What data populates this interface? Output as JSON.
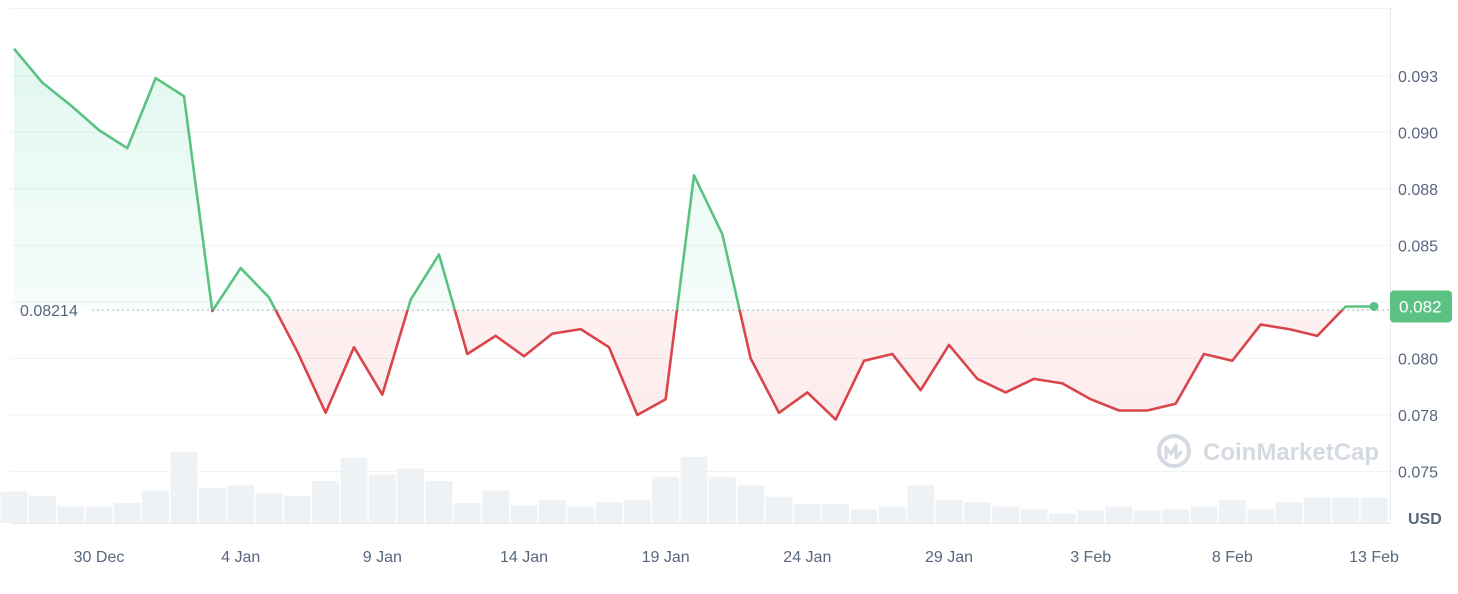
{
  "chart_data": {
    "type": "line",
    "y_unit": "USD",
    "reference_value": "0.08214",
    "current_value": "0.082",
    "ylim": [
      0.0733,
      0.0955
    ],
    "y_ticks": [
      {
        "value": 0.075,
        "label": "0.075"
      },
      {
        "value": 0.0775,
        "label": "0.078"
      },
      {
        "value": 0.08,
        "label": "0.080"
      },
      {
        "value": 0.0825,
        "label": "0.082"
      },
      {
        "value": 0.085,
        "label": "0.085"
      },
      {
        "value": 0.0875,
        "label": "0.088"
      },
      {
        "value": 0.09,
        "label": "0.090"
      },
      {
        "value": 0.0925,
        "label": "0.093"
      }
    ],
    "x_ticks": [
      {
        "index": 3,
        "label": "30 Dec"
      },
      {
        "index": 8,
        "label": "4 Jan"
      },
      {
        "index": 13,
        "label": "9 Jan"
      },
      {
        "index": 18,
        "label": "14 Jan"
      },
      {
        "index": 23,
        "label": "19 Jan"
      },
      {
        "index": 28,
        "label": "24 Jan"
      },
      {
        "index": 33,
        "label": "29 Jan"
      },
      {
        "index": 38,
        "label": "3 Feb"
      },
      {
        "index": 43,
        "label": "8 Feb"
      },
      {
        "index": 48,
        "label": "13 Feb"
      }
    ],
    "values": [
      0.0937,
      0.0922,
      0.0912,
      0.0901,
      0.0893,
      0.0924,
      0.0916,
      0.0821,
      0.084,
      0.0827,
      0.0803,
      0.0776,
      0.0805,
      0.0784,
      0.0826,
      0.0846,
      0.0802,
      0.081,
      0.0801,
      0.0811,
      0.0813,
      0.0805,
      0.0775,
      0.0782,
      0.0881,
      0.0855,
      0.08,
      0.0776,
      0.0785,
      0.0773,
      0.0799,
      0.0802,
      0.0786,
      0.0806,
      0.0791,
      0.0785,
      0.0791,
      0.0789,
      0.0782,
      0.0777,
      0.0777,
      0.078,
      0.0802,
      0.0799,
      0.0815,
      0.0813,
      0.081,
      0.0823,
      0.0823
    ],
    "volume": [
      0.3,
      0.26,
      0.16,
      0.16,
      0.19,
      0.31,
      0.68,
      0.33,
      0.36,
      0.28,
      0.26,
      0.4,
      0.62,
      0.46,
      0.52,
      0.4,
      0.19,
      0.31,
      0.17,
      0.22,
      0.16,
      0.2,
      0.22,
      0.44,
      0.63,
      0.44,
      0.36,
      0.25,
      0.18,
      0.18,
      0.13,
      0.16,
      0.36,
      0.22,
      0.2,
      0.16,
      0.13,
      0.09,
      0.12,
      0.16,
      0.12,
      0.13,
      0.16,
      0.22,
      0.13,
      0.2,
      0.24,
      0.24,
      0.24
    ],
    "colors": {
      "up": "#16c784",
      "up_line": "#5cc283",
      "down_line": "#d9454a",
      "badge": "#5cc283",
      "volume": "#eff2f5",
      "grid": "#eff2f5"
    },
    "watermark": "CoinMarketCap"
  }
}
